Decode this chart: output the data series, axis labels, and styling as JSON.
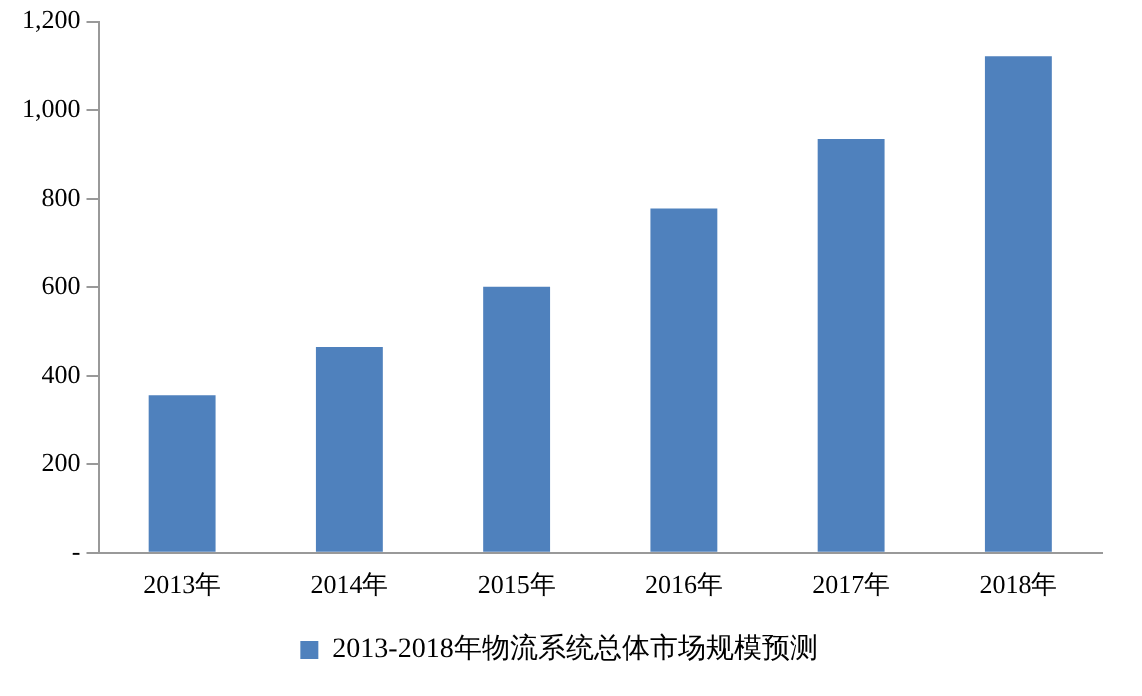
{
  "chart_data": {
    "type": "bar",
    "categories": [
      "2013年",
      "2014年",
      "2015年",
      "2016年",
      "2017年",
      "2018年"
    ],
    "series": [
      {
        "name": "2013-2018年物流系统总体市场规模预测",
        "color": "#4f81bd",
        "values": [
          356,
          465,
          601,
          778,
          935,
          1122
        ]
      }
    ],
    "ylim": [
      0,
      1200
    ],
    "yticks": [
      {
        "value": 0,
        "label": "-"
      },
      200,
      400,
      600,
      800,
      {
        "value": 1000,
        "label": "1,000"
      },
      {
        "value": 1200,
        "label": "1,200"
      }
    ],
    "grid": false,
    "legend": "bottom"
  }
}
